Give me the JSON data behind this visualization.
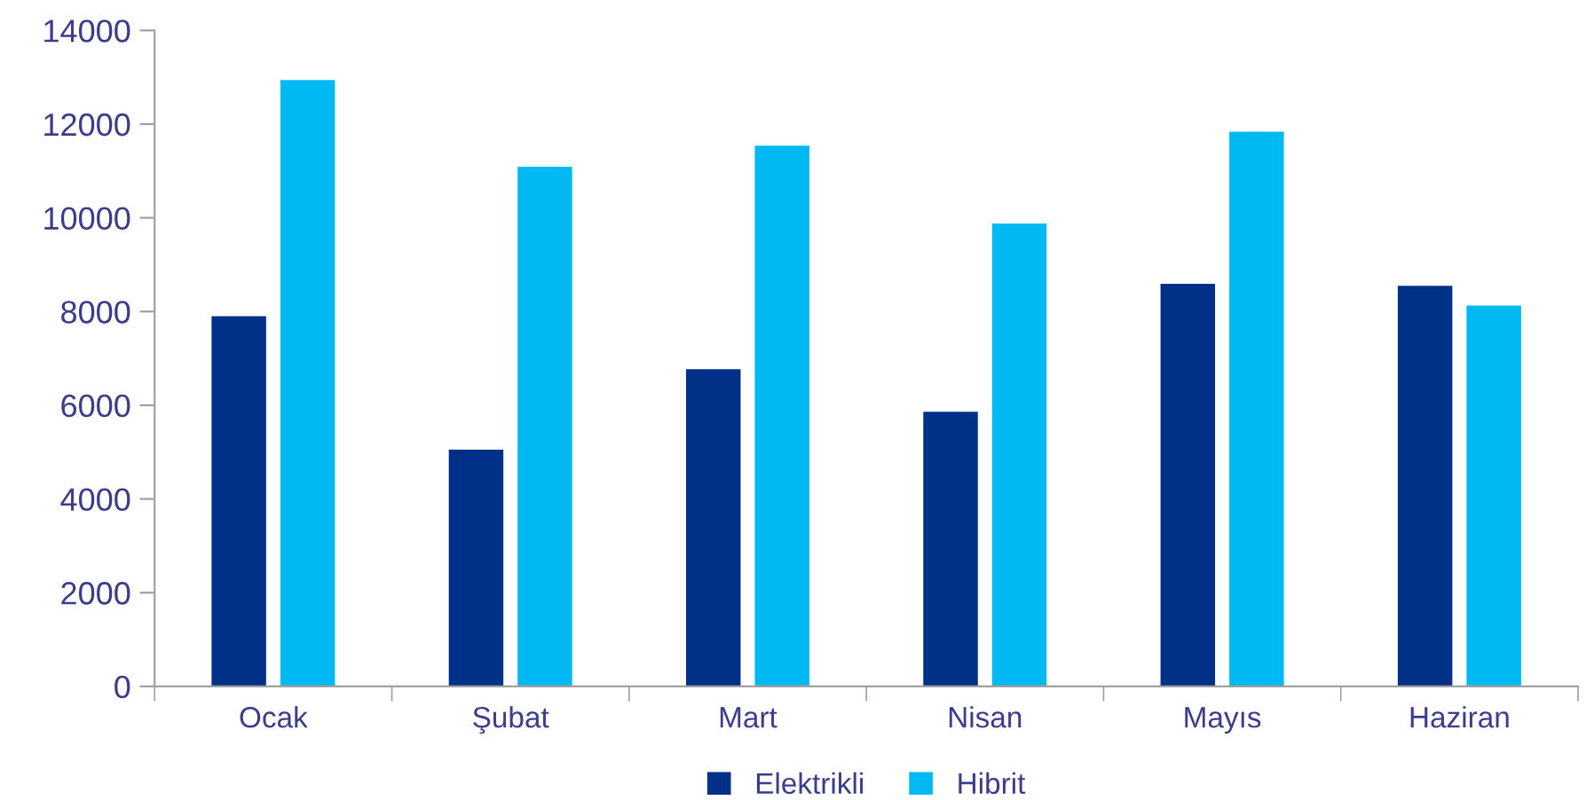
{
  "chart_data": {
    "type": "bar",
    "categories": [
      "Ocak",
      "Şubat",
      "Mart",
      "Nisan",
      "Mayıs",
      "Haziran"
    ],
    "series": [
      {
        "name": "Elektrikli",
        "color": "#003087",
        "values": [
          7900,
          5050,
          6770,
          5860,
          8590,
          8550
        ]
      },
      {
        "name": "Hibrit",
        "color": "#00b9f2",
        "values": [
          12940,
          11090,
          11540,
          9880,
          11840,
          8130
        ]
      }
    ],
    "ylim": [
      0,
      14000
    ],
    "yticks": [
      0,
      2000,
      4000,
      6000,
      8000,
      10000,
      12000,
      14000
    ],
    "grid": false,
    "legend": "bottom"
  }
}
